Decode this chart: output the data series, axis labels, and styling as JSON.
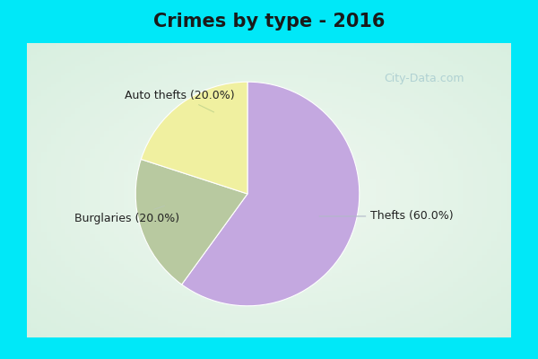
{
  "title": "Crimes by type - 2016",
  "slices": [
    {
      "label": "Thefts",
      "pct": 60.0,
      "color": "#c4a8e0"
    },
    {
      "label": "Auto thefts",
      "pct": 20.0,
      "color": "#f0f0a0"
    },
    {
      "label": "Burglaries",
      "pct": 20.0,
      "color": "#b8c9a0"
    }
  ],
  "bg_color_border": "#00e8f8",
  "bg_color_inner": "#d8f0e0",
  "bg_color_center": "#eef8f0",
  "title_fontsize": 15,
  "label_fontsize": 9,
  "label_color": "#222222",
  "watermark": "City-Data.com",
  "watermark_color": "#a8ccd0",
  "border_thickness": 0.06
}
